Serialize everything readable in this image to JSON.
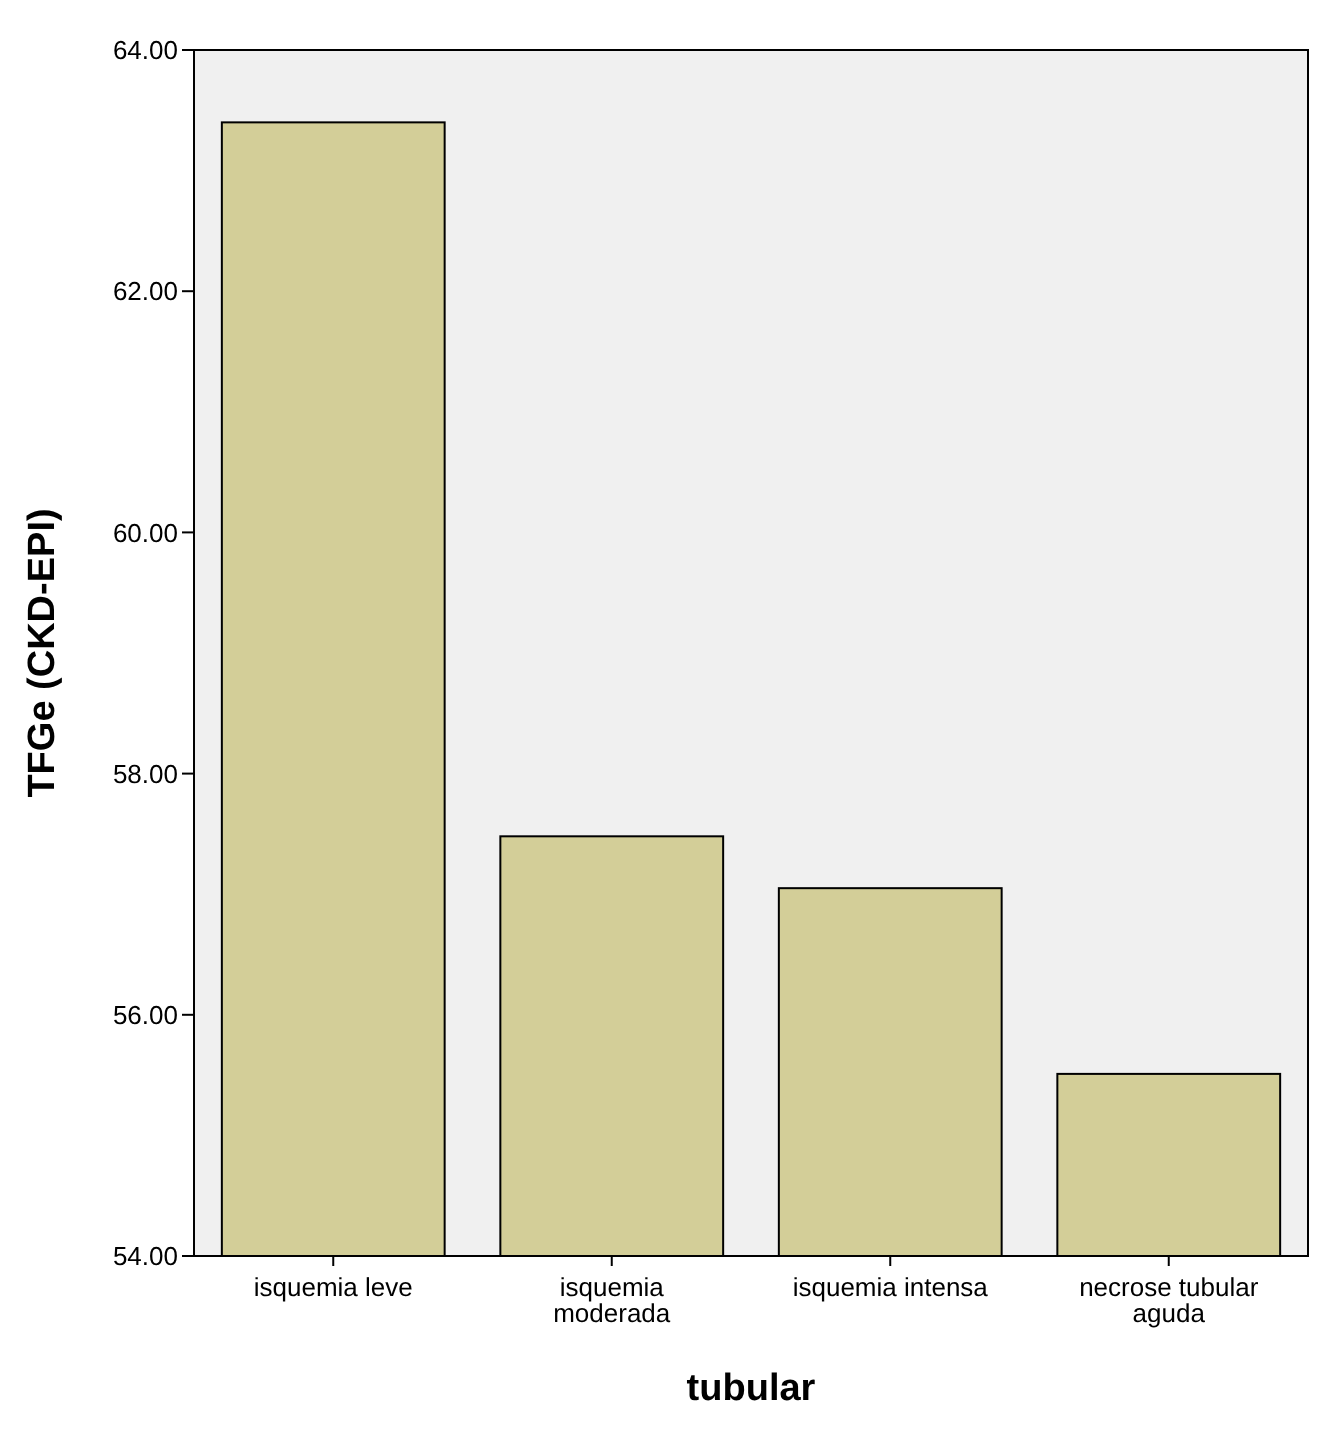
{
  "chart_data": {
    "type": "bar",
    "xlabel": "tubular",
    "ylabel": "TFGe (CKD-EPI)",
    "categories": [
      "isquemia leve",
      "isquemia moderada",
      "isquemia intensa",
      "necrose tubular aguda"
    ],
    "values": [
      63.4,
      57.48,
      57.05,
      55.51
    ],
    "color": "#d3ce98",
    "ylim": [
      54,
      64
    ],
    "yticks": [
      {
        "value": 54,
        "label": "54.00"
      },
      {
        "value": 56,
        "label": "56.00"
      },
      {
        "value": 58,
        "label": "58.00"
      },
      {
        "value": 60,
        "label": "60.00"
      },
      {
        "value": 62,
        "label": "62.00"
      },
      {
        "value": 64,
        "label": "64.00"
      }
    ],
    "grid": false
  }
}
